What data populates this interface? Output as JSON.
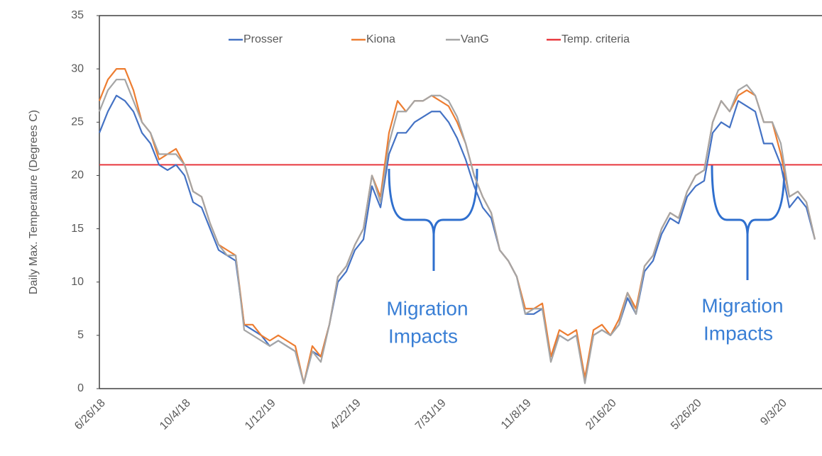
{
  "chart_data": {
    "type": "line",
    "y_label": "Daily Max. Temperature (Degrees C)",
    "categories": [
      "6/26/18",
      null,
      null,
      null,
      null,
      null,
      null,
      null,
      null,
      null,
      "10/4/18",
      null,
      null,
      null,
      null,
      null,
      null,
      null,
      null,
      null,
      "1/12/19",
      null,
      null,
      null,
      null,
      null,
      null,
      null,
      null,
      null,
      "4/22/19",
      null,
      null,
      null,
      null,
      null,
      null,
      null,
      null,
      null,
      "7/31/19",
      null,
      null,
      null,
      null,
      null,
      null,
      null,
      null,
      null,
      "11/8/19",
      null,
      null,
      null,
      null,
      null,
      null,
      null,
      null,
      null,
      "2/16/20",
      null,
      null,
      null,
      null,
      null,
      null,
      null,
      null,
      null,
      "5/26/20",
      null,
      null,
      null,
      null,
      null,
      null,
      null,
      null,
      null,
      "9/3/20",
      null,
      null,
      null,
      null
    ],
    "series": [
      {
        "name": "Prosser",
        "color": "#4472c4",
        "values": [
          24,
          26,
          27.5,
          27,
          26,
          24,
          23,
          21,
          20.5,
          21,
          20,
          17.5,
          17,
          15,
          13,
          12.5,
          12,
          6,
          5.5,
          5,
          4,
          4.5,
          4,
          3.5,
          0.5,
          3.5,
          3,
          6,
          10,
          11,
          13,
          14,
          19,
          17,
          22,
          24,
          24,
          25,
          25.5,
          26,
          26,
          25,
          23.5,
          21.5,
          19,
          17,
          16,
          13,
          12,
          10.5,
          7,
          7,
          7.5,
          3,
          5,
          4.5,
          5,
          1,
          5,
          5.5,
          5,
          6,
          8.5,
          7,
          11,
          12,
          14.5,
          16,
          15.5,
          18,
          19,
          19.5,
          24,
          25,
          24.5,
          27,
          26.5,
          26,
          23,
          23,
          21,
          17,
          18,
          17,
          14
        ]
      },
      {
        "name": "Kiona",
        "color": "#ed7d31",
        "values": [
          27,
          29,
          30,
          30,
          28,
          25,
          24,
          21.5,
          22,
          22.5,
          21,
          18.5,
          18,
          15.5,
          13.5,
          13,
          12.5,
          6,
          6,
          5,
          4.5,
          5,
          4.5,
          4,
          0.5,
          4,
          3,
          6,
          10.5,
          11.5,
          13.5,
          15,
          20,
          18,
          24,
          27,
          26,
          27,
          27,
          27.5,
          27,
          26.5,
          25,
          23,
          20,
          18,
          16.5,
          13,
          12,
          10.5,
          7.5,
          7.5,
          8,
          3,
          5.5,
          5,
          5.5,
          1,
          5.5,
          6,
          5,
          6.5,
          9,
          7.5,
          11.5,
          12.5,
          15,
          16.5,
          16,
          18.5,
          20,
          20.5,
          25,
          27,
          26,
          27.5,
          28,
          27.5,
          25,
          25,
          22,
          18,
          18.5,
          17.5,
          14
        ]
      },
      {
        "name": "VanG",
        "color": "#a5a5a5",
        "values": [
          26,
          28,
          29,
          29,
          27,
          25,
          24,
          22,
          22,
          22,
          21,
          18.5,
          18,
          15.5,
          13.5,
          12.5,
          12.5,
          5.5,
          5,
          4.5,
          4,
          4.5,
          4,
          3.5,
          0.5,
          3.5,
          2.5,
          6,
          10.5,
          11.5,
          13.5,
          15,
          20,
          17.5,
          23,
          26,
          26,
          27,
          27,
          27.5,
          27.5,
          27,
          25.5,
          23,
          20,
          18,
          16.5,
          13,
          12,
          10.5,
          7,
          7.5,
          7.5,
          2.5,
          5,
          4.5,
          5,
          0.5,
          5,
          5.5,
          5,
          6,
          9,
          7,
          11.5,
          12.5,
          15,
          16.5,
          16,
          18.5,
          20,
          20.5,
          25,
          27,
          26,
          28,
          28.5,
          27.5,
          25,
          25,
          23,
          18,
          18.5,
          17.5,
          14
        ]
      }
    ],
    "reference_line": {
      "name": "Temp. criteria",
      "color": "#e8383d",
      "value": 21
    },
    "annotations": [
      {
        "lines": [
          "Migration",
          "Impacts"
        ]
      },
      {
        "lines": [
          "Migration",
          "Impacts"
        ]
      }
    ],
    "ylim": [
      0,
      35
    ],
    "yticks": [
      0,
      5,
      10,
      15,
      20,
      25,
      30,
      35
    ],
    "legend": "top"
  }
}
